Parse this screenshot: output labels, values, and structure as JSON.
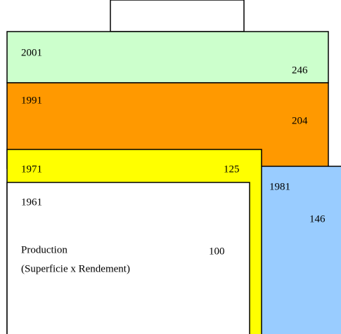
{
  "nodes": [
    {
      "year": "2001",
      "value": 246
    },
    {
      "year": "1991",
      "value": 204
    },
    {
      "year": "1981",
      "value": 146
    },
    {
      "year": "1971",
      "value": 125
    },
    {
      "year": "1961",
      "value": 100,
      "label": "Production",
      "sublabel": "(Superficie x Rendement)"
    }
  ]
}
